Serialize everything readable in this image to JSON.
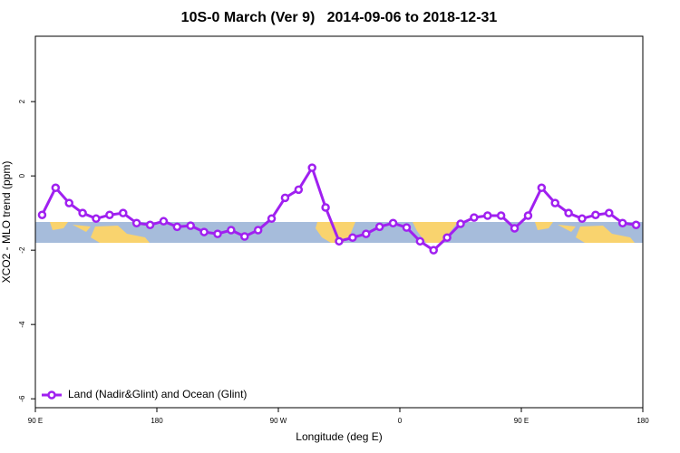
{
  "chart_data": {
    "type": "line",
    "title": "10S-0 March (Ver 9)   2014-09-06 to 2018-12-31",
    "xlabel": "Longitude (deg E)",
    "ylabel": "XCO2 - MLO trend (ppm)",
    "x": [
      95,
      105,
      115,
      125,
      135,
      145,
      155,
      165,
      175,
      185,
      195,
      205,
      215,
      225,
      235,
      245,
      255,
      265,
      275,
      285,
      295,
      305,
      315,
      325,
      335,
      345,
      355,
      365,
      375,
      385,
      395,
      405,
      415,
      425,
      435,
      445,
      455,
      465,
      475,
      485,
      495,
      505,
      515,
      525,
      535
    ],
    "series": [
      {
        "name": "Land (Nadir&Glint) and Ocean (Glint)",
        "color": "#a020f0",
        "values": [
          -1.05,
          -0.32,
          -0.73,
          -1.0,
          -1.15,
          -1.05,
          -1.0,
          -1.27,
          -1.32,
          -1.22,
          -1.37,
          -1.34,
          -1.51,
          -1.56,
          -1.46,
          -1.63,
          -1.46,
          -1.15,
          -0.59,
          -0.37,
          0.22,
          -0.85,
          -1.76,
          -1.66,
          -1.56,
          -1.37,
          -1.27,
          -1.39,
          -1.76,
          -2.0,
          -1.66,
          -1.29,
          -1.12,
          -1.07,
          -1.07,
          -1.41,
          -1.07,
          -0.32,
          -0.73,
          -1.0,
          -1.15,
          -1.05,
          -1.0,
          -1.27,
          -1.32
        ]
      }
    ],
    "xlim": [
      90,
      540
    ],
    "xticks": [
      {
        "value": 90,
        "label": "90 E"
      },
      180,
      {
        "value": 270,
        "label": "90 W"
      },
      {
        "value": 360,
        "label": "0"
      },
      {
        "value": 450,
        "label": "90 E"
      },
      {
        "value": 540,
        "label": "180"
      }
    ],
    "ylim": [
      -6.24,
      3.76
    ],
    "yticks": [
      2,
      0,
      -2,
      -4,
      -6
    ],
    "legend": "bottom-left"
  }
}
